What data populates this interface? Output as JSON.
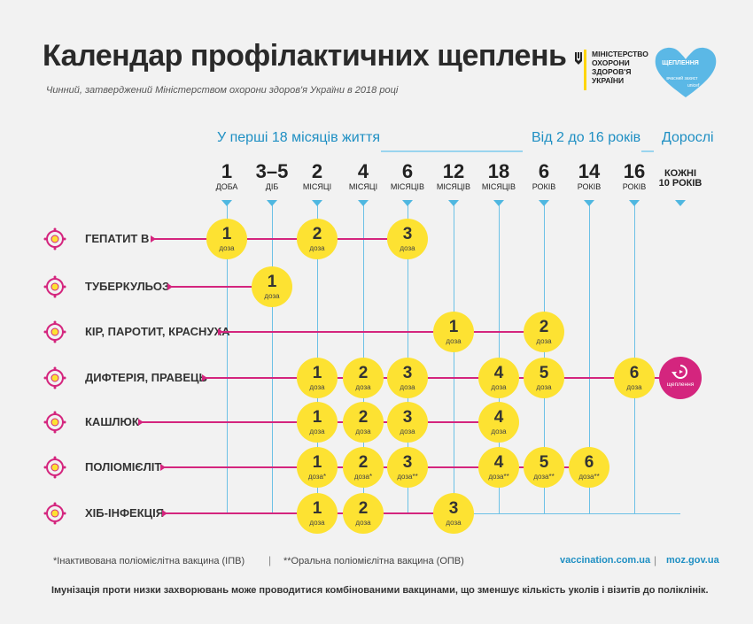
{
  "header": {
    "title": "Календар профілактичних щеплень",
    "subtitle": "Чинний, затверджений Міністерством охорони здоров'я України в 2018 році",
    "ministry": [
      "МІНІСТЕРСТВО",
      "ОХОРОНИ",
      "ЗДОРОВ'Я",
      "УКРАЇНИ"
    ],
    "campaign_title": [
      "ЩЕПЛЕННЯ"
    ],
    "campaign_sub": "вчасний захист",
    "unicef": "unicef"
  },
  "groups": [
    {
      "label": "У перші 18 місяців життя"
    },
    {
      "label": "Від 2 до 16 років"
    },
    {
      "label": "Дорослі"
    }
  ],
  "columns": [
    {
      "num": "1",
      "unit": "ДОБА"
    },
    {
      "num": "3–5",
      "unit": "ДІБ"
    },
    {
      "num": "2",
      "unit": "МІСЯЦІ"
    },
    {
      "num": "4",
      "unit": "МІСЯЦІ"
    },
    {
      "num": "6",
      "unit": "МІСЯЦІВ"
    },
    {
      "num": "12",
      "unit": "МІСЯЦІВ"
    },
    {
      "num": "18",
      "unit": "МІСЯЦІВ"
    },
    {
      "num": "6",
      "unit": "РОКІВ"
    },
    {
      "num": "14",
      "unit": "РОКІВ"
    },
    {
      "num": "16",
      "unit": "РОКІВ"
    },
    {
      "num": "КОЖНІ",
      "unit": "10 РОКІВ"
    }
  ],
  "dose_word": "доза",
  "booster_word": "щеплення",
  "vaccines": [
    {
      "name": "ГЕПАТИТ В",
      "icon": "hepatitis-virus-icon",
      "doses": [
        {
          "col": 0,
          "n": "1",
          "mark": ""
        },
        {
          "col": 2,
          "n": "2",
          "mark": ""
        },
        {
          "col": 4,
          "n": "3",
          "mark": ""
        }
      ]
    },
    {
      "name": "ТУБЕРКУЛЬОЗ",
      "icon": "tuberculosis-bacteria-icon",
      "doses": [
        {
          "col": 1,
          "n": "1",
          "mark": ""
        }
      ]
    },
    {
      "name": "КІР, ПАРОТИТ, КРАСНУХА",
      "icon": "measles-virus-icon",
      "doses": [
        {
          "col": 5,
          "n": "1",
          "mark": ""
        },
        {
          "col": 7,
          "n": "2",
          "mark": ""
        }
      ]
    },
    {
      "name": "ДИФТЕРІЯ, ПРАВЕЦЬ",
      "icon": "diphtheria-bacteria-icon",
      "doses": [
        {
          "col": 2,
          "n": "1",
          "mark": ""
        },
        {
          "col": 3,
          "n": "2",
          "mark": ""
        },
        {
          "col": 4,
          "n": "3",
          "mark": ""
        },
        {
          "col": 6,
          "n": "4",
          "mark": ""
        },
        {
          "col": 7,
          "n": "5",
          "mark": ""
        },
        {
          "col": 9,
          "n": "6",
          "mark": ""
        }
      ],
      "booster": true
    },
    {
      "name": "КАШЛЮК",
      "icon": "pertussis-bacteria-icon",
      "doses": [
        {
          "col": 2,
          "n": "1",
          "mark": ""
        },
        {
          "col": 3,
          "n": "2",
          "mark": ""
        },
        {
          "col": 4,
          "n": "3",
          "mark": ""
        },
        {
          "col": 6,
          "n": "4",
          "mark": ""
        }
      ]
    },
    {
      "name": "ПОЛІОМІЄЛІТ",
      "icon": "polio-virus-icon",
      "doses": [
        {
          "col": 2,
          "n": "1",
          "mark": "*"
        },
        {
          "col": 3,
          "n": "2",
          "mark": "*"
        },
        {
          "col": 4,
          "n": "3",
          "mark": "**"
        },
        {
          "col": 6,
          "n": "4",
          "mark": "**"
        },
        {
          "col": 7,
          "n": "5",
          "mark": "**"
        },
        {
          "col": 8,
          "n": "6",
          "mark": "**"
        }
      ]
    },
    {
      "name": "ХІБ-ІНФЕКЦІЯ",
      "icon": "hib-bacteria-icon",
      "doses": [
        {
          "col": 2,
          "n": "1",
          "mark": ""
        },
        {
          "col": 3,
          "n": "2",
          "mark": ""
        },
        {
          "col": 5,
          "n": "3",
          "mark": ""
        }
      ]
    }
  ],
  "footer": {
    "note1": "*Інактивована поліомієлітна вакцина (ІПВ)",
    "note2": "**Оральна поліомієлітна вакцина (ОПВ)",
    "link1": "vaccination.com.ua",
    "link2": "moz.gov.ua",
    "separator": "|",
    "bottom": "Імунізація проти низки захворювань може проводитися комбінованими вакцинами, що зменшує кількість уколів і візитів до поліклінік."
  },
  "colors": {
    "accent": "#1e8fc3",
    "dose": "#fde232",
    "line": "#d4257e",
    "grid": "#6cc1e6"
  }
}
